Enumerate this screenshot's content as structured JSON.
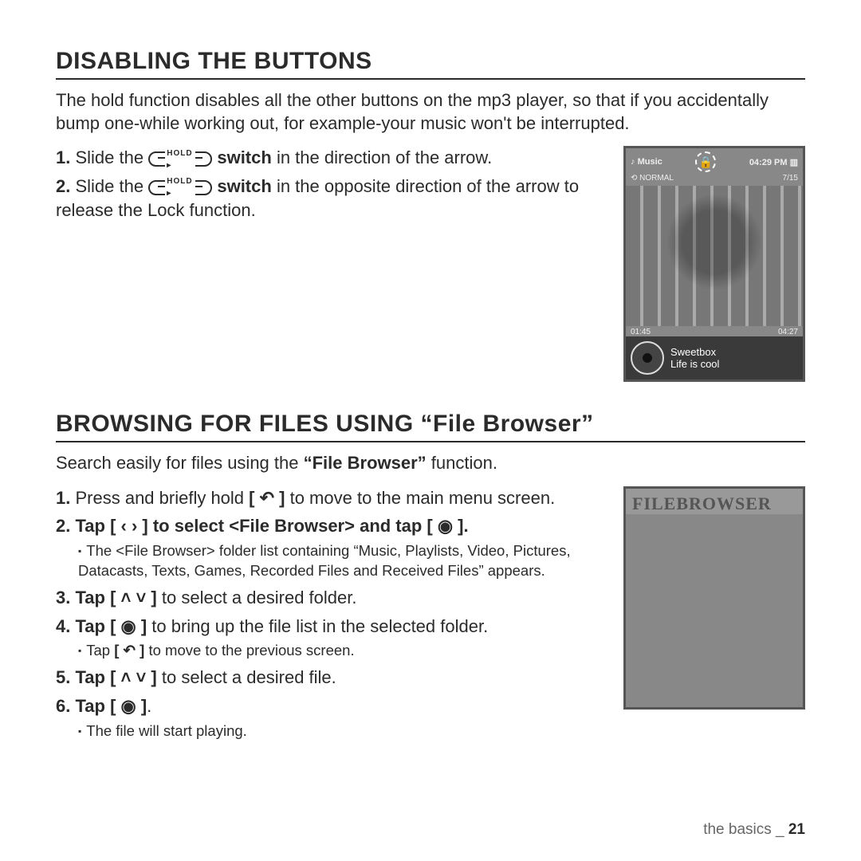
{
  "section1": {
    "heading": "DISABLING THE BUTTONS",
    "intro": "The hold function disables all the other buttons on the mp3 player, so that if you accidentally bump one-while working out, for example-your music won't be interrupted.",
    "step1_a": "Slide the ",
    "hold_label": "HOLD ▸",
    "step1_b": " switch",
    "step1_c": " in the direction of the arrow.",
    "step2_a": "Slide the ",
    "step2_b": " switch",
    "step2_c": " in the opposite direction of the arrow to release the Lock function."
  },
  "figure_music": {
    "icon_left": "♪",
    "label_left": "Music",
    "lock_glyph": "🔒",
    "time": "04:29 PM",
    "batt": "▥",
    "normal_icon": "⟲",
    "normal_label": "NORMAL",
    "track_index": "7/15",
    "pos_left": "01:45",
    "pos_right": "04:27",
    "track_artist": "Sweetbox",
    "track_title": "Life is cool"
  },
  "section2": {
    "heading": "BROWSING FOR FILES USING “File Browser”",
    "intro_a": "Search easily for files using the ",
    "intro_b": "“File Browser”",
    "intro_c": " function.",
    "s1_a": "Press and briefly hold ",
    "back_icon": "[ ↶ ]",
    "s1_b": " to move to the main menu screen.",
    "s2_a": "Tap ",
    "lr_icon": "[ ‹  › ]",
    "s2_b": " to select ",
    "s2_c": "<File Browser>",
    "s2_d": " and tap ",
    "ok_icon": "[ ◉ ]",
    "period": ".",
    "s2_sub": "The <File Browser> folder list containing “Music, Playlists, Video, Pictures, Datacasts, Texts, Games, Recorded Files and Received Files” appears.",
    "s3_a": "Tap ",
    "ud_icon": "[ ˄  ˅ ]",
    "s3_b": " to select a desired folder.",
    "s4_a": "Tap ",
    "s4_b": " to bring up the file list in the selected folder.",
    "s4_sub_a": "Tap ",
    "s4_sub_b": " to move to the previous screen.",
    "s5_a": "Tap ",
    "s5_b": " to select a desired file.",
    "s6_a": " Tap ",
    "s6_sub": "The file will start playing."
  },
  "figure_browser": {
    "title": "FILEBROWSER"
  },
  "footer": {
    "label": "the basics _ ",
    "page": "21"
  },
  "nums": {
    "n1": "1.",
    "n2": "2.",
    "n3": "3.",
    "n4": "4.",
    "n5": "5.",
    "n6": "6."
  },
  "bullet": "▪"
}
